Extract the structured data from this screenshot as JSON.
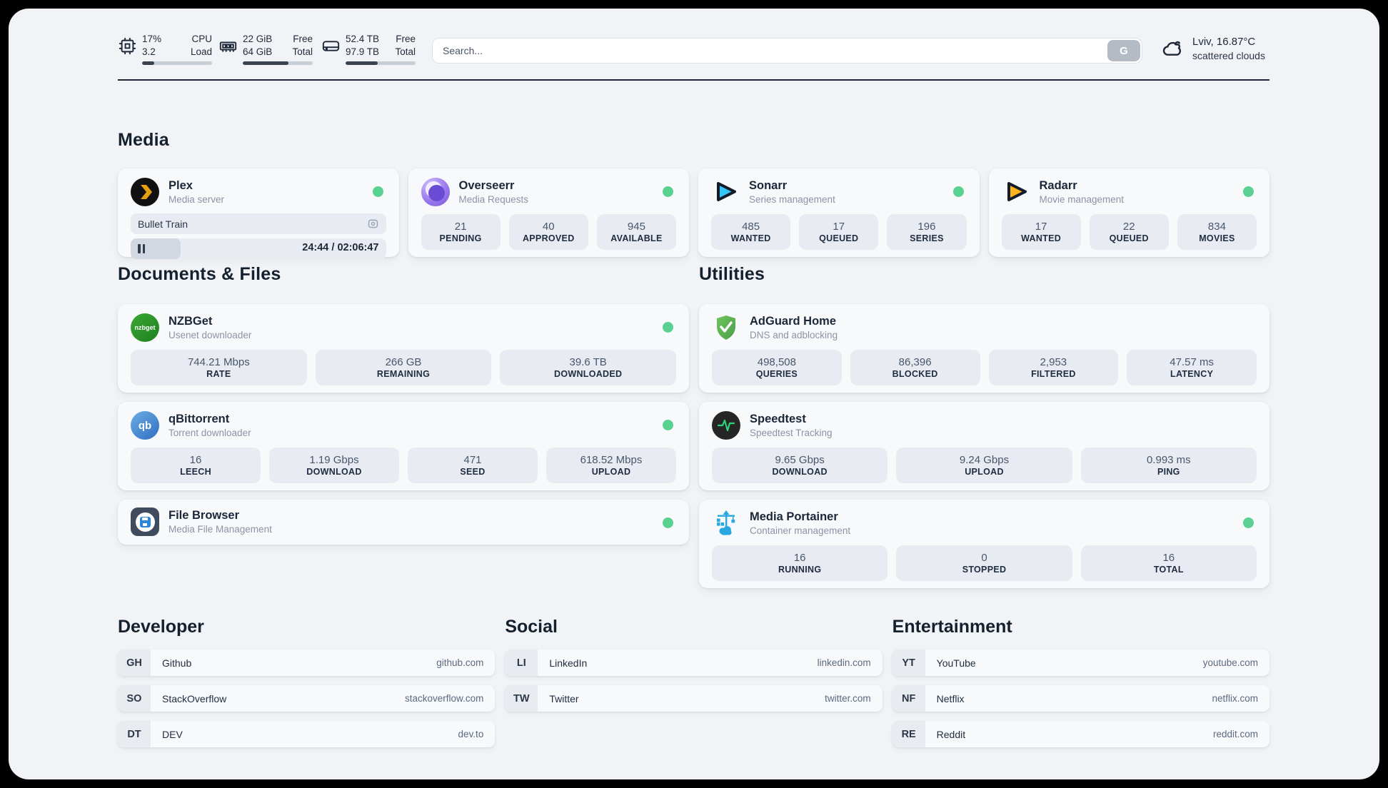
{
  "header": {
    "system_stats": [
      {
        "icon": "cpu-icon",
        "values": [
          "17%",
          "3.2"
        ],
        "labels": [
          "CPU",
          "Load"
        ],
        "progress_pct": 17
      },
      {
        "icon": "ram-icon",
        "values": [
          "22 GiB",
          "64 GiB"
        ],
        "labels": [
          "Free",
          "Total"
        ],
        "progress_pct": 65
      },
      {
        "icon": "disk-icon",
        "values": [
          "52.4 TB",
          "97.9 TB"
        ],
        "labels": [
          "Free",
          "Total"
        ],
        "progress_pct": 46
      }
    ],
    "search": {
      "placeholder": "Search...",
      "button_label": "G"
    },
    "weather": {
      "icon": "cloud-icon",
      "line1": "Lviv, 16.87°C",
      "line2": "scattered clouds"
    }
  },
  "sections": {
    "media": {
      "title": "Media",
      "apps": [
        {
          "icon": "plex-icon",
          "name": "Plex",
          "subtitle": "Media server",
          "status_dot": true,
          "now_playing": {
            "title": "Bullet Train",
            "time": "24:44 / 02:06:47",
            "progress_pct": 19.5
          }
        },
        {
          "icon": "overseerr-icon",
          "name": "Overseerr",
          "subtitle": "Media Requests",
          "status_dot": true,
          "stats": [
            {
              "value": "21",
              "label": "PENDING"
            },
            {
              "value": "40",
              "label": "APPROVED"
            },
            {
              "value": "945",
              "label": "AVAILABLE"
            }
          ]
        },
        {
          "icon": "sonarr-icon",
          "name": "Sonarr",
          "subtitle": "Series management",
          "status_dot": true,
          "stats": [
            {
              "value": "485",
              "label": "WANTED"
            },
            {
              "value": "17",
              "label": "QUEUED"
            },
            {
              "value": "196",
              "label": "SERIES"
            }
          ]
        },
        {
          "icon": "radarr-icon",
          "name": "Radarr",
          "subtitle": "Movie management",
          "status_dot": true,
          "stats": [
            {
              "value": "17",
              "label": "WANTED"
            },
            {
              "value": "22",
              "label": "QUEUED"
            },
            {
              "value": "834",
              "label": "MOVIES"
            }
          ]
        }
      ]
    },
    "documents": {
      "title": "Documents & Files",
      "apps": [
        {
          "icon": "nzbget-icon",
          "name": "NZBGet",
          "subtitle": "Usenet downloader",
          "status_dot": true,
          "icon_text": "nzbget",
          "stats": [
            {
              "value": "744.21 Mbps",
              "label": "RATE"
            },
            {
              "value": "266 GB",
              "label": "REMAINING"
            },
            {
              "value": "39.6 TB",
              "label": "DOWNLOADED"
            }
          ]
        },
        {
          "icon": "qbittorrent-icon",
          "name": "qBittorrent",
          "subtitle": "Torrent downloader",
          "status_dot": true,
          "icon_text": "qb",
          "stats": [
            {
              "value": "16",
              "label": "LEECH"
            },
            {
              "value": "1.19 Gbps",
              "label": "DOWNLOAD"
            },
            {
              "value": "471",
              "label": "SEED"
            },
            {
              "value": "618.52 Mbps",
              "label": "UPLOAD"
            }
          ]
        },
        {
          "icon": "filebrowser-icon",
          "name": "File Browser",
          "subtitle": "Media File Management",
          "status_dot": true
        }
      ]
    },
    "utilities": {
      "title": "Utilities",
      "apps": [
        {
          "icon": "adguard-icon",
          "name": "AdGuard Home",
          "subtitle": "DNS and adblocking",
          "status_dot": false,
          "stats": [
            {
              "value": "498,508",
              "label": "QUERIES"
            },
            {
              "value": "86,396",
              "label": "BLOCKED"
            },
            {
              "value": "2,953",
              "label": "FILTERED"
            },
            {
              "value": "47.57 ms",
              "label": "LATENCY"
            }
          ]
        },
        {
          "icon": "speedtest-icon",
          "name": "Speedtest",
          "subtitle": "Speedtest Tracking",
          "status_dot": false,
          "stats": [
            {
              "value": "9.65 Gbps",
              "label": "DOWNLOAD"
            },
            {
              "value": "9.24 Gbps",
              "label": "UPLOAD"
            },
            {
              "value": "0.993 ms",
              "label": "PING"
            }
          ]
        },
        {
          "icon": "portainer-icon",
          "name": "Media Portainer",
          "subtitle": "Container management",
          "status_dot": true,
          "stats": [
            {
              "value": "16",
              "label": "RUNNING"
            },
            {
              "value": "0",
              "label": "STOPPED"
            },
            {
              "value": "16",
              "label": "TOTAL"
            }
          ]
        }
      ]
    },
    "bookmark_groups": [
      {
        "title": "Developer",
        "items": [
          {
            "abbr": "GH",
            "name": "Github",
            "url": "github.com"
          },
          {
            "abbr": "SO",
            "name": "StackOverflow",
            "url": "stackoverflow.com"
          },
          {
            "abbr": "DT",
            "name": "DEV",
            "url": "dev.to"
          }
        ]
      },
      {
        "title": "Social",
        "items": [
          {
            "abbr": "LI",
            "name": "LinkedIn",
            "url": "linkedin.com"
          },
          {
            "abbr": "TW",
            "name": "Twitter",
            "url": "twitter.com"
          }
        ]
      },
      {
        "title": "Entertainment",
        "items": [
          {
            "abbr": "YT",
            "name": "YouTube",
            "url": "youtube.com"
          },
          {
            "abbr": "NF",
            "name": "Netflix",
            "url": "netflix.com"
          },
          {
            "abbr": "RE",
            "name": "Reddit",
            "url": "reddit.com"
          }
        ]
      }
    ]
  },
  "colors": {
    "status_green": "#59d190",
    "page_bg": "#f1f3f6",
    "card_bg": "#f7f9fb",
    "stat_box_bg": "#e8ecf2"
  }
}
